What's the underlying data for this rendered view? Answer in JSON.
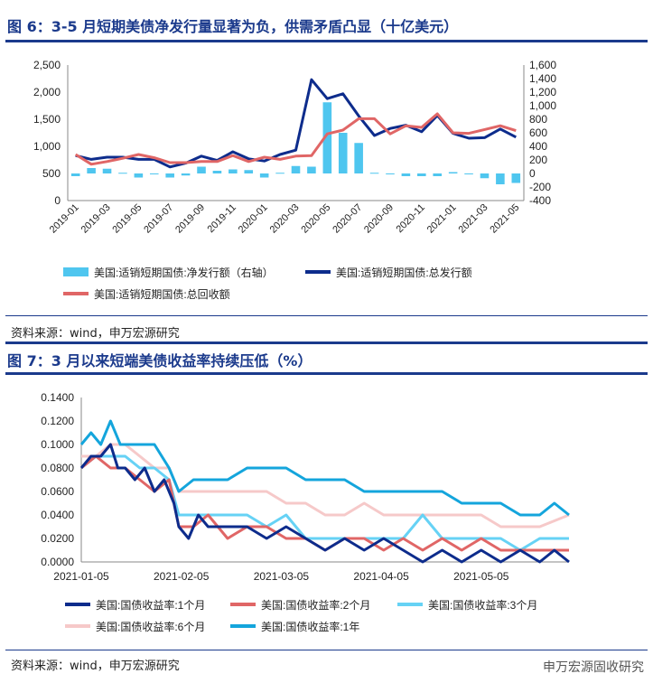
{
  "chart6": {
    "title": "图 6：3-5 月短期美债净发行量显著为负，供需矛盾凸显（十亿美元）",
    "source": "资料来源：wind，申万宏源研究"
  },
  "chart7": {
    "title": "图 7：3 月以来短端美债收益率持续压低（%）",
    "source": "资料来源：wind，申万宏源研究"
  },
  "watermark": "申万宏源固收研究",
  "colors": {
    "brand": "#1b3a8c",
    "navy": "#0d2c8c",
    "red": "#e06666",
    "cyan": "#4fc6ef",
    "pink": "#f6c9c9",
    "lightblue": "#66d2f5",
    "sky": "#14a5dc"
  },
  "chart_data": [
    {
      "type": "bar+line",
      "title": "3-5 月短期美债净发行量显著为负，供需矛盾凸显（十亿美元）",
      "x": [
        "2019-01",
        "2019-02",
        "2019-03",
        "2019-04",
        "2019-05",
        "2019-06",
        "2019-07",
        "2019-08",
        "2019-09",
        "2019-10",
        "2019-11",
        "2019-12",
        "2020-01",
        "2020-02",
        "2020-03",
        "2020-04",
        "2020-05",
        "2020-06",
        "2020-07",
        "2020-08",
        "2020-09",
        "2020-10",
        "2020-11",
        "2020-12",
        "2021-01",
        "2021-02",
        "2021-03",
        "2021-04",
        "2021-05"
      ],
      "x_ticks": [
        "2019-01",
        "2019-03",
        "2019-05",
        "2019-07",
        "2019-09",
        "2019-11",
        "2020-01",
        "2020-03",
        "2020-05",
        "2020-07",
        "2020-09",
        "2020-11",
        "2021-01",
        "2021-03",
        "2021-05"
      ],
      "y_left": {
        "min": 0,
        "max": 2500,
        "ticks": [
          "0",
          "500",
          "1,000",
          "1,500",
          "2,000",
          "2,500"
        ]
      },
      "y_right": {
        "min": -400,
        "max": 1600,
        "ticks": [
          "-400",
          "-200",
          "0",
          "200",
          "400",
          "600",
          "800",
          "1,000",
          "1,200",
          "1,400",
          "1,600"
        ]
      },
      "series": [
        {
          "name": "美国:适销短期国债:净发行额（右轴）",
          "kind": "bar",
          "axis": "right",
          "color": "#4fc6ef",
          "values": [
            -40,
            80,
            70,
            10,
            -60,
            -10,
            -60,
            -30,
            100,
            40,
            60,
            50,
            -60,
            10,
            110,
            100,
            1050,
            600,
            450,
            10,
            -10,
            -40,
            -40,
            -40,
            20,
            -10,
            -70,
            -160,
            -140
          ]
        },
        {
          "name": "美国:适销短期国债:总发行额",
          "kind": "line",
          "axis": "left",
          "color": "#0d2c8c",
          "values": [
            830,
            760,
            800,
            800,
            760,
            760,
            620,
            690,
            820,
            740,
            900,
            770,
            730,
            850,
            930,
            2230,
            1880,
            1970,
            1560,
            1200,
            1330,
            1390,
            1270,
            1570,
            1240,
            1150,
            1160,
            1320,
            1170
          ]
        },
        {
          "name": "美国:适销短期国债:总回收额",
          "kind": "line",
          "axis": "left",
          "color": "#e06666",
          "values": [
            850,
            670,
            720,
            780,
            850,
            790,
            700,
            700,
            720,
            720,
            830,
            720,
            800,
            760,
            820,
            830,
            1230,
            1300,
            1510,
            1510,
            1230,
            1380,
            1350,
            1600,
            1250,
            1240,
            1310,
            1380,
            1290
          ]
        }
      ]
    },
    {
      "type": "line",
      "title": "3 月以来短端美债收益率持续压低（%）",
      "x_ticks": [
        "2021-01-05",
        "2021-02-05",
        "2021-03-05",
        "2021-04-05",
        "2021-05-05"
      ],
      "x_range": [
        0,
        1
      ],
      "y": {
        "min": 0,
        "max": 0.14,
        "ticks": [
          "0.0000",
          "0.0200",
          "0.0400",
          "0.0600",
          "0.0800",
          "0.1000",
          "0.1200",
          "0.1400"
        ]
      },
      "series": [
        {
          "name": "美国:国债收益率:1个月",
          "color": "#0d2c8c",
          "points": [
            [
              0,
              0.08
            ],
            [
              0.02,
              0.09
            ],
            [
              0.04,
              0.09
            ],
            [
              0.06,
              0.1
            ],
            [
              0.075,
              0.08
            ],
            [
              0.09,
              0.08
            ],
            [
              0.11,
              0.07
            ],
            [
              0.13,
              0.08
            ],
            [
              0.15,
              0.06
            ],
            [
              0.17,
              0.07
            ],
            [
              0.19,
              0.05
            ],
            [
              0.2,
              0.03
            ],
            [
              0.22,
              0.02
            ],
            [
              0.24,
              0.04
            ],
            [
              0.26,
              0.03
            ],
            [
              0.3,
              0.03
            ],
            [
              0.34,
              0.03
            ],
            [
              0.38,
              0.02
            ],
            [
              0.42,
              0.03
            ],
            [
              0.46,
              0.02
            ],
            [
              0.5,
              0.01
            ],
            [
              0.54,
              0.02
            ],
            [
              0.58,
              0.01
            ],
            [
              0.62,
              0.02
            ],
            [
              0.66,
              0.01
            ],
            [
              0.7,
              0.0
            ],
            [
              0.74,
              0.01
            ],
            [
              0.78,
              0.0
            ],
            [
              0.82,
              0.01
            ],
            [
              0.86,
              0.0
            ],
            [
              0.9,
              0.01
            ],
            [
              0.94,
              0.0
            ],
            [
              0.97,
              0.01
            ],
            [
              1.0,
              0.0
            ]
          ]
        },
        {
          "name": "美国:国债收益率:2个月",
          "color": "#e06666",
          "points": [
            [
              0,
              0.08
            ],
            [
              0.03,
              0.09
            ],
            [
              0.06,
              0.08
            ],
            [
              0.09,
              0.08
            ],
            [
              0.12,
              0.07
            ],
            [
              0.15,
              0.06
            ],
            [
              0.18,
              0.07
            ],
            [
              0.2,
              0.03
            ],
            [
              0.23,
              0.03
            ],
            [
              0.26,
              0.04
            ],
            [
              0.3,
              0.02
            ],
            [
              0.34,
              0.03
            ],
            [
              0.38,
              0.03
            ],
            [
              0.42,
              0.02
            ],
            [
              0.46,
              0.02
            ],
            [
              0.5,
              0.01
            ],
            [
              0.54,
              0.02
            ],
            [
              0.58,
              0.02
            ],
            [
              0.62,
              0.01
            ],
            [
              0.66,
              0.02
            ],
            [
              0.7,
              0.01
            ],
            [
              0.74,
              0.02
            ],
            [
              0.78,
              0.01
            ],
            [
              0.82,
              0.02
            ],
            [
              0.86,
              0.01
            ],
            [
              0.9,
              0.01
            ],
            [
              0.94,
              0.01
            ],
            [
              1.0,
              0.01
            ]
          ]
        },
        {
          "name": "美国:国债收益率:3个月",
          "color": "#66d2f5",
          "points": [
            [
              0,
              0.08
            ],
            [
              0.03,
              0.09
            ],
            [
              0.06,
              0.09
            ],
            [
              0.09,
              0.09
            ],
            [
              0.12,
              0.08
            ],
            [
              0.15,
              0.08
            ],
            [
              0.18,
              0.07
            ],
            [
              0.2,
              0.04
            ],
            [
              0.23,
              0.04
            ],
            [
              0.26,
              0.04
            ],
            [
              0.3,
              0.04
            ],
            [
              0.34,
              0.04
            ],
            [
              0.38,
              0.03
            ],
            [
              0.42,
              0.04
            ],
            [
              0.46,
              0.02
            ],
            [
              0.5,
              0.02
            ],
            [
              0.54,
              0.02
            ],
            [
              0.58,
              0.02
            ],
            [
              0.62,
              0.02
            ],
            [
              0.66,
              0.02
            ],
            [
              0.7,
              0.04
            ],
            [
              0.74,
              0.02
            ],
            [
              0.78,
              0.02
            ],
            [
              0.82,
              0.02
            ],
            [
              0.86,
              0.02
            ],
            [
              0.9,
              0.01
            ],
            [
              0.94,
              0.02
            ],
            [
              1.0,
              0.02
            ]
          ]
        },
        {
          "name": "美国:国债收益率:6个月",
          "color": "#f6c9c9",
          "points": [
            [
              0,
              0.09
            ],
            [
              0.03,
              0.09
            ],
            [
              0.06,
              0.1
            ],
            [
              0.09,
              0.1
            ],
            [
              0.12,
              0.09
            ],
            [
              0.15,
              0.08
            ],
            [
              0.18,
              0.08
            ],
            [
              0.2,
              0.06
            ],
            [
              0.23,
              0.06
            ],
            [
              0.26,
              0.06
            ],
            [
              0.3,
              0.06
            ],
            [
              0.34,
              0.06
            ],
            [
              0.38,
              0.06
            ],
            [
              0.42,
              0.05
            ],
            [
              0.46,
              0.05
            ],
            [
              0.5,
              0.04
            ],
            [
              0.54,
              0.04
            ],
            [
              0.58,
              0.05
            ],
            [
              0.62,
              0.04
            ],
            [
              0.66,
              0.04
            ],
            [
              0.7,
              0.04
            ],
            [
              0.74,
              0.04
            ],
            [
              0.78,
              0.04
            ],
            [
              0.82,
              0.04
            ],
            [
              0.86,
              0.03
            ],
            [
              0.9,
              0.03
            ],
            [
              0.94,
              0.03
            ],
            [
              1.0,
              0.04
            ]
          ]
        },
        {
          "name": "美国:国债收益率:1年",
          "color": "#14a5dc",
          "points": [
            [
              0,
              0.1
            ],
            [
              0.02,
              0.11
            ],
            [
              0.04,
              0.1
            ],
            [
              0.06,
              0.12
            ],
            [
              0.08,
              0.1
            ],
            [
              0.12,
              0.1
            ],
            [
              0.15,
              0.1
            ],
            [
              0.18,
              0.08
            ],
            [
              0.2,
              0.06
            ],
            [
              0.23,
              0.07
            ],
            [
              0.26,
              0.07
            ],
            [
              0.3,
              0.07
            ],
            [
              0.34,
              0.08
            ],
            [
              0.38,
              0.08
            ],
            [
              0.42,
              0.08
            ],
            [
              0.46,
              0.07
            ],
            [
              0.5,
              0.07
            ],
            [
              0.54,
              0.07
            ],
            [
              0.58,
              0.06
            ],
            [
              0.62,
              0.06
            ],
            [
              0.66,
              0.06
            ],
            [
              0.7,
              0.06
            ],
            [
              0.74,
              0.06
            ],
            [
              0.78,
              0.05
            ],
            [
              0.82,
              0.05
            ],
            [
              0.86,
              0.05
            ],
            [
              0.9,
              0.04
            ],
            [
              0.94,
              0.04
            ],
            [
              0.97,
              0.05
            ],
            [
              1.0,
              0.04
            ]
          ]
        }
      ]
    }
  ]
}
